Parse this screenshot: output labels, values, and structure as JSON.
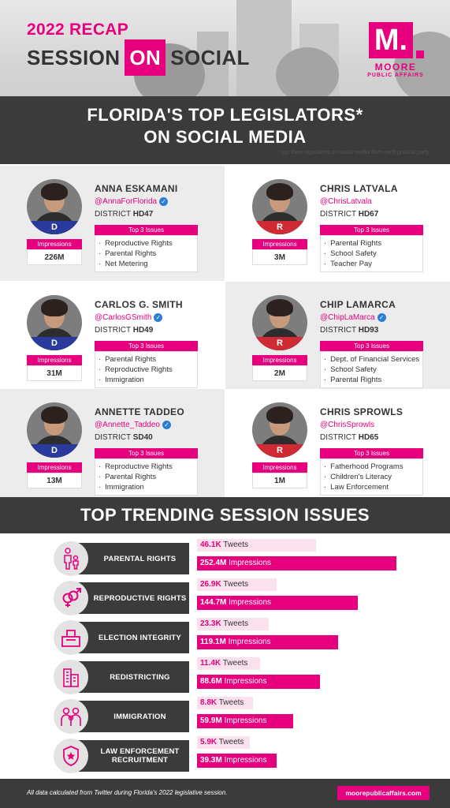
{
  "header": {
    "recap": "2022 RECAP",
    "session": "SESSION",
    "on": "ON",
    "social": "SOCIAL",
    "logo_letter": "M.",
    "logo_name": "MOORE",
    "logo_sub": "PUBLIC AFFAIRS"
  },
  "banner": {
    "line1": "FLORIDA'S TOP LEGISLATORS*",
    "line2": "ON SOCIAL MEDIA",
    "footnote": "* top three legislators on social media from each political party"
  },
  "labels": {
    "impressions": "Impressions",
    "top3": "Top 3 Issues",
    "district": "DISTRICT"
  },
  "legislators": [
    {
      "name": "ANNA ESKAMANI",
      "handle": "@AnnaForFlorida",
      "district": "HD47",
      "party": "D",
      "impressions": "226M",
      "issues": [
        "Reproductive Rights",
        "Parental Rights",
        "Net Metering"
      ]
    },
    {
      "name": "CHRIS LATVALA",
      "handle": "@ChrisLatvala",
      "district": "HD67",
      "party": "R",
      "impressions": "3M",
      "issues": [
        "Parental Rights",
        "School Safety",
        "Teacher Pay"
      ]
    },
    {
      "name": "CARLOS G. SMITH",
      "handle": "@CarlosGSmith",
      "district": "HD49",
      "party": "D",
      "impressions": "31M",
      "issues": [
        "Parental Rights",
        "Reproductive Rights",
        "Immigration"
      ]
    },
    {
      "name": "CHIP LAMARCA",
      "handle": "@ChipLaMarca",
      "district": "HD93",
      "party": "R",
      "impressions": "2M",
      "issues": [
        "Dept. of Financial Services",
        "School Safety",
        "Parental Rights"
      ]
    },
    {
      "name": "ANNETTE TADDEO",
      "handle": "@Annette_Taddeo",
      "district": "SD40",
      "party": "D",
      "impressions": "13M",
      "issues": [
        "Reproductive Rights",
        "Parental Rights",
        "Immigration"
      ]
    },
    {
      "name": "CHRIS SPROWLS",
      "handle": "@ChrisSprowls",
      "district": "HD65",
      "party": "R",
      "impressions": "1M",
      "issues": [
        "Fatherhood Programs",
        "Children's Literacy",
        "Law Enforcement"
      ]
    }
  ],
  "trending": {
    "title": "TOP TRENDING SESSION ISSUES",
    "tweets_word": "Tweets",
    "impressions_word": "Impressions",
    "issues": [
      {
        "label": "PARENTAL RIGHTS",
        "tweets": "46.1K",
        "impressions": "252.4M",
        "icon": "parent-child-icon"
      },
      {
        "label": "REPRODUCTIVE RIGHTS",
        "tweets": "26.9K",
        "impressions": "144.7M",
        "icon": "gender-symbols-icon"
      },
      {
        "label": "ELECTION INTEGRITY",
        "tweets": "23.3K",
        "impressions": "119.1M",
        "icon": "ballot-box-icon"
      },
      {
        "label": "REDISTRICTING",
        "tweets": "11.4K",
        "impressions": "88.6M",
        "icon": "buildings-icon"
      },
      {
        "label": "IMMIGRATION",
        "tweets": "8.8K",
        "impressions": "59.9M",
        "icon": "family-icon"
      },
      {
        "label": "LAW ENFORCEMENT RECRUITMENT",
        "tweets": "5.9K",
        "impressions": "39.3M",
        "icon": "police-badge-icon"
      }
    ]
  },
  "footer": {
    "note": "All data calculated from Twitter during Florida's 2022 legislative session.",
    "url": "moorepublicaffairs.com"
  },
  "colors": {
    "accent": "#e6007e",
    "dark": "#3b3b3b",
    "democrat": "#2a3a9c",
    "republican": "#d02a34"
  }
}
